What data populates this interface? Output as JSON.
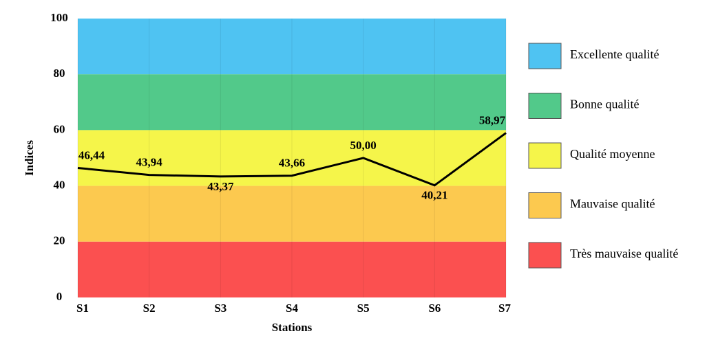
{
  "chart_data": {
    "type": "line",
    "categories": [
      "S1",
      "S2",
      "S3",
      "S4",
      "S5",
      "S6",
      "S7"
    ],
    "values": [
      46.44,
      43.94,
      43.37,
      43.66,
      50.0,
      40.21,
      58.97
    ],
    "value_labels": [
      "46,44",
      "43,94",
      "43,37",
      "43,66",
      "50,00",
      "40,21",
      "58,97"
    ],
    "color": "#000000",
    "xlabel": "Stations",
    "ylabel": "Indices",
    "ylim": [
      0,
      100
    ],
    "yticks": [
      0,
      20,
      40,
      60,
      80,
      100
    ],
    "bands": [
      {
        "name": "Excellente qualité",
        "color": "#4fc3f2",
        "range": [
          80,
          100
        ]
      },
      {
        "name": "Bonne qualité",
        "color": "#52c98a",
        "range": [
          60,
          80
        ]
      },
      {
        "name": "Qualité moyenne",
        "color": "#f5f54a",
        "range": [
          40,
          60
        ]
      },
      {
        "name": "Mauvaise qualité",
        "color": "#fcc94f",
        "range": [
          20,
          40
        ]
      },
      {
        "name": "Très mauvaise qualité",
        "color": "#fb5050",
        "range": [
          0,
          20
        ]
      }
    ]
  }
}
